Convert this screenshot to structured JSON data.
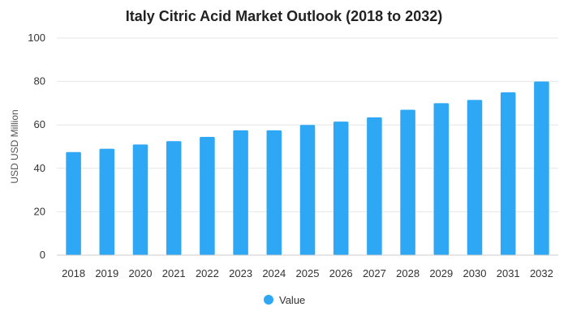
{
  "chart_data": {
    "type": "bar",
    "title": "Italy Citric Acid Market Outlook (2018 to 2032)",
    "xlabel": "",
    "ylabel": "USD USD Million",
    "categories": [
      "2018",
      "2019",
      "2020",
      "2021",
      "2022",
      "2023",
      "2024",
      "2025",
      "2026",
      "2027",
      "2028",
      "2029",
      "2030",
      "2031",
      "2032"
    ],
    "series": [
      {
        "name": "Value",
        "color": "#2ea8f5",
        "values": [
          47.5,
          49,
          51,
          52.5,
          54.5,
          57.5,
          57.5,
          60,
          61.5,
          63.5,
          67,
          70,
          71.5,
          75,
          80
        ]
      }
    ],
    "ylim": [
      0,
      100
    ],
    "yticks": [
      0,
      20,
      40,
      60,
      80,
      100
    ],
    "grid": true,
    "legend_position": "bottom-center"
  }
}
